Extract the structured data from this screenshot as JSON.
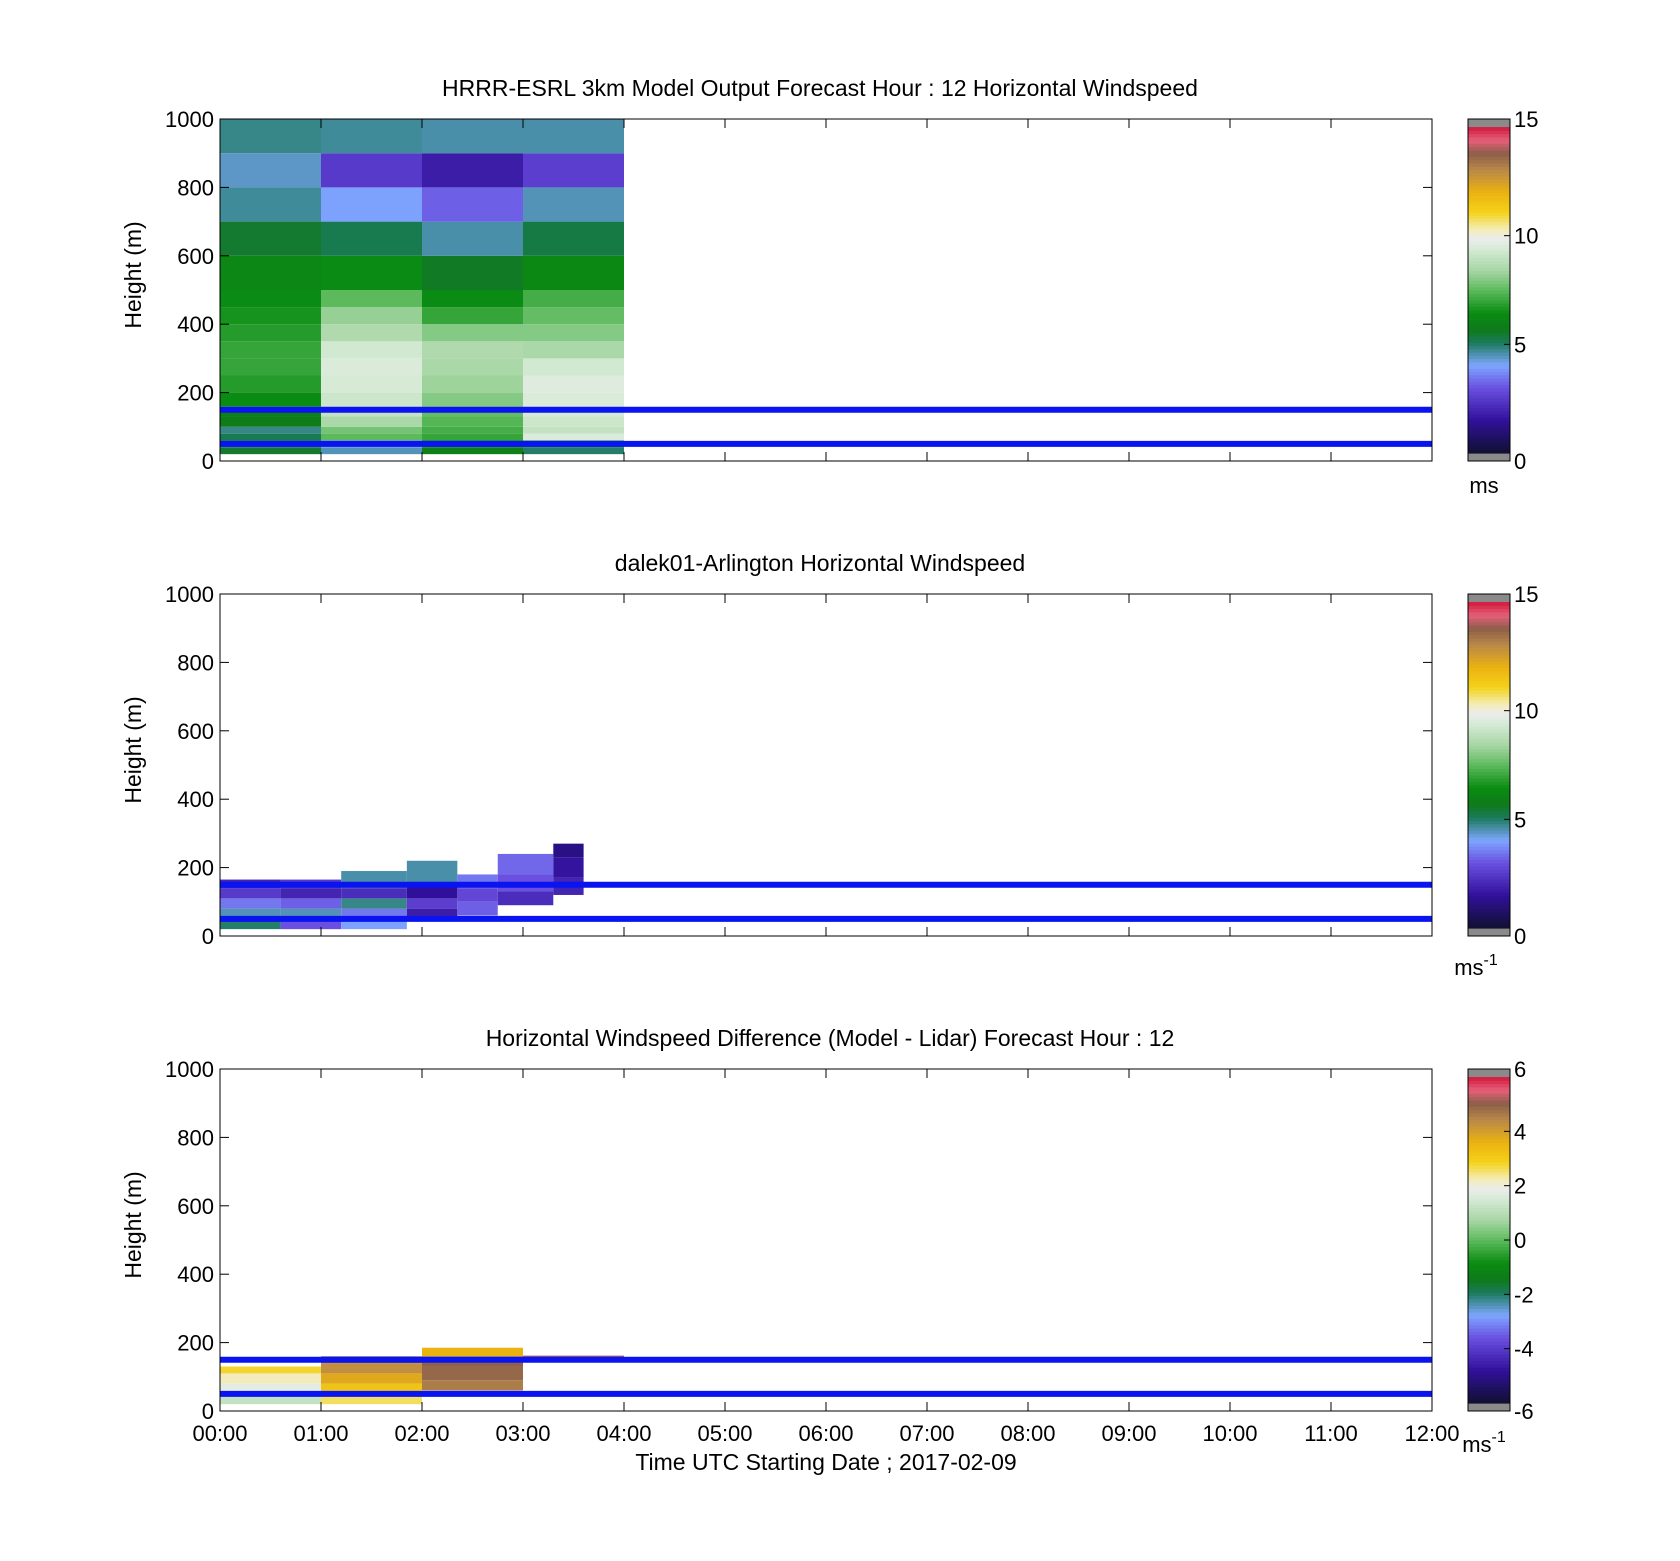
{
  "figure": {
    "xlabel": "Time UTC  Starting Date ; 2017-02-09",
    "x_ticks": [
      "00:00",
      "01:00",
      "02:00",
      "03:00",
      "04:00",
      "05:00",
      "06:00",
      "07:00",
      "08:00",
      "09:00",
      "10:00",
      "11:00",
      "12:00"
    ],
    "reference_heights_m": [
      150,
      50
    ],
    "reference_line_color": "#0a14f0"
  },
  "chart_data": [
    {
      "type": "heatmap",
      "title": "HRRR-ESRL 3km Model Output   Forecast Hour : 12 Horizontal Windspeed",
      "ylabel": "Height (m)",
      "xlim": [
        0,
        12
      ],
      "ylim": [
        0,
        1000
      ],
      "y_ticks": [
        0,
        200,
        400,
        600,
        800,
        1000
      ],
      "colorbar": {
        "ticks": [
          0,
          5,
          10,
          15
        ],
        "range": [
          0,
          15
        ],
        "unit": "ms"
      },
      "x_bins_hours": [
        [
          0,
          1
        ],
        [
          1,
          2
        ],
        [
          2,
          3
        ],
        [
          3,
          4
        ]
      ],
      "y_bins_m": [
        [
          20,
          40
        ],
        [
          40,
          60
        ],
        [
          60,
          80
        ],
        [
          80,
          100
        ],
        [
          100,
          130
        ],
        [
          130,
          160
        ],
        [
          160,
          200
        ],
        [
          200,
          250
        ],
        [
          250,
          300
        ],
        [
          300,
          350
        ],
        [
          350,
          400
        ],
        [
          400,
          450
        ],
        [
          450,
          500
        ],
        [
          500,
          600
        ],
        [
          600,
          700
        ],
        [
          700,
          800
        ],
        [
          800,
          900
        ],
        [
          900,
          1000
        ]
      ],
      "values_ms": [
        [
          5.5,
          4.5,
          6.0,
          5.0
        ],
        [
          5.0,
          4.0,
          6.2,
          6.5
        ],
        [
          5.2,
          7.5,
          7.0,
          9.5
        ],
        [
          4.8,
          7.8,
          7.2,
          9.0
        ],
        [
          5.8,
          8.5,
          7.4,
          9.2
        ],
        [
          6.0,
          9.0,
          7.6,
          9.4
        ],
        [
          6.4,
          9.2,
          8.0,
          9.5
        ],
        [
          6.8,
          9.4,
          8.3,
          9.6
        ],
        [
          7.0,
          9.5,
          8.5,
          9.3
        ],
        [
          7.0,
          9.3,
          8.6,
          8.5
        ],
        [
          6.8,
          8.6,
          8.0,
          8.0
        ],
        [
          6.6,
          8.2,
          7.0,
          7.6
        ],
        [
          6.4,
          7.5,
          6.4,
          7.2
        ],
        [
          6.2,
          6.4,
          5.6,
          6.3
        ],
        [
          5.5,
          5.2,
          4.6,
          5.3
        ],
        [
          4.7,
          4.0,
          3.2,
          4.5
        ],
        [
          4.4,
          2.5,
          1.8,
          2.6
        ],
        [
          4.8,
          4.7,
          4.6,
          4.6
        ]
      ]
    },
    {
      "type": "heatmap",
      "title": "dalek01-Arlington  Horizontal Windspeed",
      "ylabel": "Height (m)",
      "xlim": [
        0,
        12
      ],
      "ylim": [
        0,
        1000
      ],
      "y_ticks": [
        0,
        200,
        400,
        600,
        800,
        1000
      ],
      "colorbar": {
        "ticks": [
          0,
          5,
          10,
          15
        ],
        "range": [
          0,
          15
        ],
        "unit": "ms",
        "unit_exponent": "-1"
      },
      "cells": [
        {
          "x": [
            0.0,
            0.6
          ],
          "y": [
            20,
            50
          ],
          "v": 5.0
        },
        {
          "x": [
            0.0,
            0.6
          ],
          "y": [
            50,
            80
          ],
          "v": 4.5
        },
        {
          "x": [
            0.0,
            0.6
          ],
          "y": [
            80,
            110
          ],
          "v": 3.5
        },
        {
          "x": [
            0.0,
            0.6
          ],
          "y": [
            110,
            140
          ],
          "v": 2.5
        },
        {
          "x": [
            0.0,
            0.6
          ],
          "y": [
            140,
            165
          ],
          "v": 2.0
        },
        {
          "x": [
            0.6,
            1.2
          ],
          "y": [
            20,
            50
          ],
          "v": 3.0
        },
        {
          "x": [
            0.6,
            1.2
          ],
          "y": [
            50,
            80
          ],
          "v": 4.5
        },
        {
          "x": [
            0.6,
            1.2
          ],
          "y": [
            80,
            110
          ],
          "v": 3.2
        },
        {
          "x": [
            0.6,
            1.2
          ],
          "y": [
            110,
            140
          ],
          "v": 2.0
        },
        {
          "x": [
            0.6,
            1.2
          ],
          "y": [
            140,
            165
          ],
          "v": 2.5
        },
        {
          "x": [
            1.2,
            1.85
          ],
          "y": [
            20,
            50
          ],
          "v": 4.0
        },
        {
          "x": [
            1.2,
            1.85
          ],
          "y": [
            50,
            80
          ],
          "v": 3.5
        },
        {
          "x": [
            1.2,
            1.85
          ],
          "y": [
            80,
            110
          ],
          "v": 4.8
        },
        {
          "x": [
            1.2,
            1.85
          ],
          "y": [
            110,
            140
          ],
          "v": 2.2
        },
        {
          "x": [
            1.2,
            1.85
          ],
          "y": [
            140,
            190
          ],
          "v": 4.6
        },
        {
          "x": [
            1.85,
            2.35
          ],
          "y": [
            50,
            80
          ],
          "v": 1.8
        },
        {
          "x": [
            1.85,
            2.35
          ],
          "y": [
            80,
            110
          ],
          "v": 2.6
        },
        {
          "x": [
            1.85,
            2.35
          ],
          "y": [
            110,
            150
          ],
          "v": 1.5
        },
        {
          "x": [
            1.85,
            2.35
          ],
          "y": [
            150,
            220
          ],
          "v": 4.6
        },
        {
          "x": [
            2.35,
            2.75
          ],
          "y": [
            60,
            100
          ],
          "v": 3.2
        },
        {
          "x": [
            2.35,
            2.75
          ],
          "y": [
            100,
            140
          ],
          "v": 2.8
        },
        {
          "x": [
            2.35,
            2.75
          ],
          "y": [
            140,
            180
          ],
          "v": 3.5
        },
        {
          "x": [
            2.75,
            3.3
          ],
          "y": [
            90,
            130
          ],
          "v": 2.2
        },
        {
          "x": [
            2.75,
            3.3
          ],
          "y": [
            130,
            180
          ],
          "v": 3.0
        },
        {
          "x": [
            2.75,
            3.3
          ],
          "y": [
            180,
            240
          ],
          "v": 3.3
        },
        {
          "x": [
            3.3,
            3.6
          ],
          "y": [
            120,
            170
          ],
          "v": 2.0
        },
        {
          "x": [
            3.3,
            3.6
          ],
          "y": [
            170,
            230
          ],
          "v": 1.6
        },
        {
          "x": [
            3.3,
            3.6
          ],
          "y": [
            230,
            270
          ],
          "v": 1.2
        }
      ]
    },
    {
      "type": "heatmap",
      "title": "Horizontal Windspeed Difference (Model - Lidar) Forecast Hour : 12",
      "ylabel": "Height (m)",
      "xlim": [
        0,
        12
      ],
      "ylim": [
        0,
        1000
      ],
      "y_ticks": [
        0,
        200,
        400,
        600,
        800,
        1000
      ],
      "colorbar": {
        "ticks": [
          -6,
          -4,
          -2,
          0,
          2,
          4,
          6
        ],
        "range": [
          -6,
          6
        ],
        "unit": "ms",
        "unit_exponent": "-1"
      },
      "cells": [
        {
          "x": [
            0,
            1
          ],
          "y": [
            20,
            50
          ],
          "v": 1.2
        },
        {
          "x": [
            0,
            1
          ],
          "y": [
            50,
            80
          ],
          "v": 1.8
        },
        {
          "x": [
            0,
            1
          ],
          "y": [
            80,
            110
          ],
          "v": 2.2
        },
        {
          "x": [
            0,
            1
          ],
          "y": [
            110,
            130
          ],
          "v": 2.8
        },
        {
          "x": [
            1,
            2
          ],
          "y": [
            20,
            50
          ],
          "v": 2.6
        },
        {
          "x": [
            1,
            2
          ],
          "y": [
            50,
            80
          ],
          "v": 3.2
        },
        {
          "x": [
            1,
            2
          ],
          "y": [
            80,
            110
          ],
          "v": 3.8
        },
        {
          "x": [
            1,
            2
          ],
          "y": [
            110,
            140
          ],
          "v": 4.3
        },
        {
          "x": [
            1,
            2
          ],
          "y": [
            140,
            160
          ],
          "v": 4.8
        },
        {
          "x": [
            2,
            3
          ],
          "y": [
            60,
            90
          ],
          "v": 4.6
        },
        {
          "x": [
            2,
            3
          ],
          "y": [
            90,
            130
          ],
          "v": 4.9
        },
        {
          "x": [
            2,
            3
          ],
          "y": [
            130,
            160
          ],
          "v": 5.0
        },
        {
          "x": [
            2,
            3
          ],
          "y": [
            160,
            185
          ],
          "v": 3.6
        },
        {
          "x": [
            3,
            4
          ],
          "y": [
            150,
            162
          ],
          "v": 5.2
        }
      ]
    }
  ]
}
